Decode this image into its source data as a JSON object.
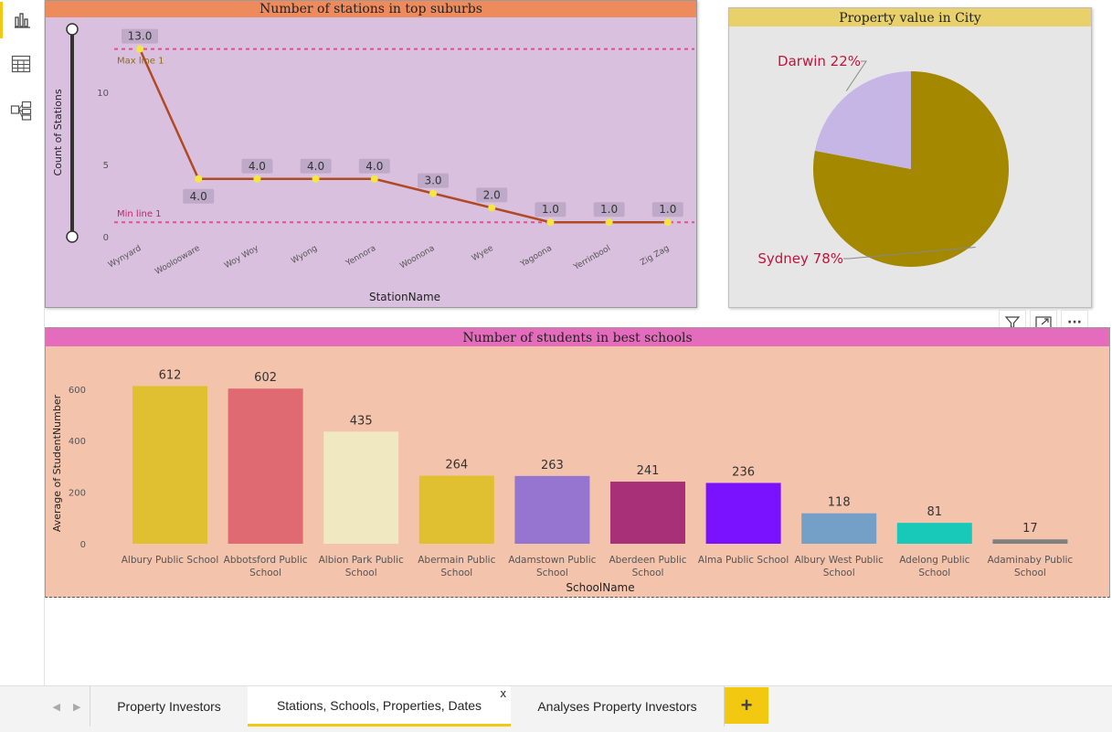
{
  "sidebar": {
    "items": [
      {
        "icon": "report-view-icon",
        "active": true
      },
      {
        "icon": "data-view-icon",
        "active": false
      },
      {
        "icon": "model-view-icon",
        "active": false
      }
    ]
  },
  "station_chart": {
    "title": "Number of stations in top suburbs",
    "colors": {
      "title_bar": "#ee8b5d",
      "background": "#dac0df",
      "line": "#b04a25",
      "marker": "#f5e642",
      "refline": "#e0508a"
    },
    "chart_data": {
      "type": "line",
      "title": "Number of stations in top suburbs",
      "xlabel": "StationName",
      "ylabel": "Count of Stations",
      "categories": [
        "Wynyard",
        "Woolooware",
        "Woy Woy",
        "Wyong",
        "Yennora",
        "Woonona",
        "Wyee",
        "Yagoona",
        "Yerrinbool",
        "Zig Zag"
      ],
      "values": [
        13,
        4,
        4,
        4,
        4,
        3,
        2,
        1,
        1,
        1
      ],
      "data_labels": [
        "13.0",
        "4.0",
        "4.0",
        "4.0",
        "4.0",
        "3.0",
        "2.0",
        "1.0",
        "1.0",
        "1.0"
      ],
      "yticks": [
        "0",
        "5",
        "10"
      ],
      "ylim": [
        0,
        13.5
      ],
      "reference_lines": [
        {
          "label": "Max line 1",
          "value": 13
        },
        {
          "label": "Min line 1",
          "value": 1
        }
      ]
    }
  },
  "pie_chart": {
    "title": "Property value in City",
    "colors": {
      "title_bar": "#e8d16a",
      "background": "#e6e6e6"
    },
    "chart_data": {
      "type": "pie",
      "title": "Property value in City",
      "slices": [
        {
          "label": "Sydney",
          "display": "Sydney 78%",
          "value": 78,
          "color": "#a38800"
        },
        {
          "label": "Darwin",
          "display": "Darwin 22%",
          "value": 22,
          "color": "#c6b6e5"
        }
      ]
    }
  },
  "school_chart": {
    "title": "Number of students in best schools",
    "colors": {
      "title_bar": "#e56cbd",
      "background": "#f4c3ac"
    },
    "chart_data": {
      "type": "bar",
      "title": "Number of students in best schools",
      "xlabel": "SchoolName",
      "ylabel": "Average of StudentNumber",
      "categories": [
        "Albury Public School",
        "Abbotsford Public School",
        "Albion Park Public School",
        "Abermain Public School",
        "Adamstown Public School",
        "Aberdeen Public School",
        "Alma Public School",
        "Albury West Public School",
        "Adelong Public School",
        "Adaminaby Public School"
      ],
      "category_lines": [
        [
          "Albury Public School"
        ],
        [
          "Abbotsford Public",
          "School"
        ],
        [
          "Albion Park Public",
          "School"
        ],
        [
          "Abermain Public",
          "School"
        ],
        [
          "Adamstown Public",
          "School"
        ],
        [
          "Aberdeen Public",
          "School"
        ],
        [
          "Alma Public School"
        ],
        [
          "Albury West Public",
          "School"
        ],
        [
          "Adelong Public",
          "School"
        ],
        [
          "Adaminaby Public",
          "School"
        ]
      ],
      "values": [
        612,
        602,
        435,
        264,
        263,
        241,
        236,
        118,
        81,
        17
      ],
      "data_labels": [
        "612",
        "602",
        "435",
        "264",
        "263",
        "241",
        "236",
        "118",
        "81",
        "17"
      ],
      "bar_colors": [
        "#e0c030",
        "#e06a72",
        "#f0e8c0",
        "#e0c030",
        "#9575d0",
        "#a83078",
        "#7a12ff",
        "#74a0c8",
        "#18c8b8",
        "#808080"
      ],
      "yticks": [
        "0",
        "200",
        "400",
        "600"
      ],
      "ylim": [
        0,
        650
      ]
    }
  },
  "visual_header": {
    "buttons": [
      {
        "icon": "filter-icon"
      },
      {
        "icon": "focus-mode-icon"
      },
      {
        "icon": "more-options-icon",
        "label": "···"
      }
    ]
  },
  "tabs": {
    "items": [
      {
        "label": "Property Investors",
        "active": false
      },
      {
        "label": "Stations, Schools, Properties, Dates",
        "active": true
      },
      {
        "label": "Analyses Property Investors",
        "active": false
      }
    ],
    "close_label": "x",
    "add_label": "+",
    "accent": "#f2c811"
  }
}
